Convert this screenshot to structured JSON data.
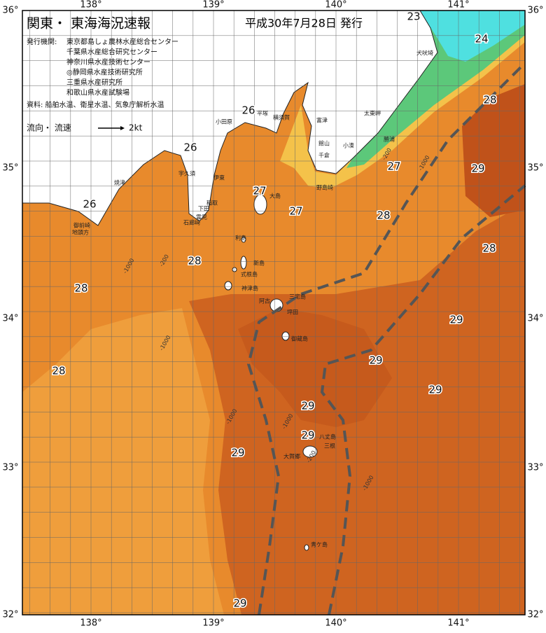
{
  "header": {
    "title": "関東・ 東海海況速報",
    "date": "平成30年7月28日 発行"
  },
  "issuers": {
    "label": "発行機関:",
    "names": [
      "東京都島しょ農林水産総合センター",
      "千葉県水産総合研究センター",
      "神奈川県水産技術センター",
      "◎静岡県水産技術研究所",
      "三重県水産研究所",
      "和歌山県水産試験場"
    ]
  },
  "sources": "資料: 船舶水温、衛星水温、気象庁解析水温",
  "legend": {
    "label": "流向・ 流速",
    "speed": "2kt"
  },
  "lon_labels": [
    "138°",
    "139°",
    "140°",
    "141°"
  ],
  "lat_labels": [
    "36°",
    "35°",
    "34°",
    "33°",
    "32°"
  ],
  "temperature_labels": [
    23,
    24,
    28,
    26,
    26,
    27,
    29,
    27,
    27,
    26,
    28,
    28,
    28,
    28,
    29,
    29,
    28,
    29,
    29,
    29,
    29,
    29
  ],
  "depth_labels": [
    "-200",
    "-1000",
    "-200",
    "-1000",
    "-1000",
    "-1000",
    "-1000",
    "-200",
    "-1000"
  ],
  "place_names": [
    "犬吠埼",
    "太東岬",
    "勝浦",
    "小湊",
    "千倉",
    "館山",
    "野島崎",
    "富津",
    "横須賀",
    "平塚",
    "小田原",
    "伊東",
    "稲取",
    "下田",
    "石廊崎",
    "雲見",
    "宇久須",
    "焼津",
    "地頭方",
    "御前崎",
    "大島",
    "利島",
    "新島",
    "式根島",
    "神津島",
    "三宅島",
    "阿古",
    "坪田",
    "御蔵島",
    "八丈島",
    "三根",
    "大賀郷",
    "青ケ島"
  ]
}
